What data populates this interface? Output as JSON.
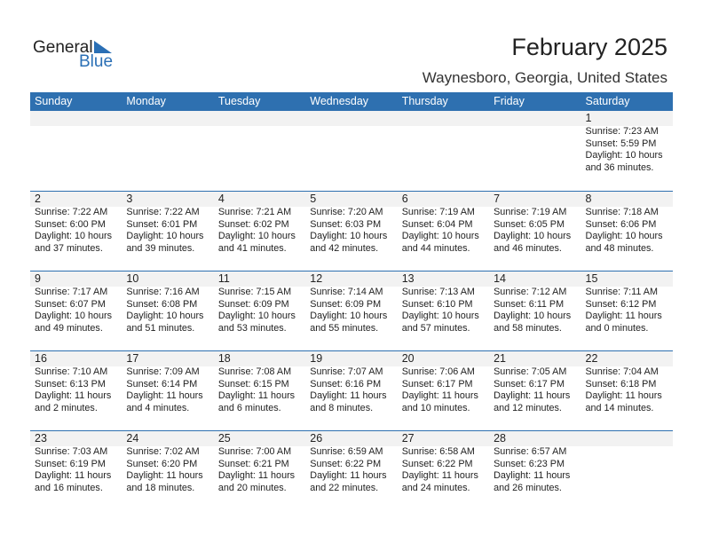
{
  "logo": {
    "text1": "General",
    "text2": "Blue"
  },
  "title": "February 2025",
  "location": "Waynesboro, Georgia, United States",
  "colors": {
    "header": "#2e70b0",
    "strip": "#f2f2f2"
  },
  "weekdays": [
    "Sunday",
    "Monday",
    "Tuesday",
    "Wednesday",
    "Thursday",
    "Friday",
    "Saturday"
  ],
  "weeks": [
    [
      null,
      null,
      null,
      null,
      null,
      null,
      {
        "day": "1",
        "sunrise": "Sunrise: 7:23 AM",
        "sunset": "Sunset: 5:59 PM",
        "daylight": "Daylight: 10 hours",
        "minutes": "and 36 minutes."
      }
    ],
    [
      {
        "day": "2",
        "sunrise": "Sunrise: 7:22 AM",
        "sunset": "Sunset: 6:00 PM",
        "daylight": "Daylight: 10 hours",
        "minutes": "and 37 minutes."
      },
      {
        "day": "3",
        "sunrise": "Sunrise: 7:22 AM",
        "sunset": "Sunset: 6:01 PM",
        "daylight": "Daylight: 10 hours",
        "minutes": "and 39 minutes."
      },
      {
        "day": "4",
        "sunrise": "Sunrise: 7:21 AM",
        "sunset": "Sunset: 6:02 PM",
        "daylight": "Daylight: 10 hours",
        "minutes": "and 41 minutes."
      },
      {
        "day": "5",
        "sunrise": "Sunrise: 7:20 AM",
        "sunset": "Sunset: 6:03 PM",
        "daylight": "Daylight: 10 hours",
        "minutes": "and 42 minutes."
      },
      {
        "day": "6",
        "sunrise": "Sunrise: 7:19 AM",
        "sunset": "Sunset: 6:04 PM",
        "daylight": "Daylight: 10 hours",
        "minutes": "and 44 minutes."
      },
      {
        "day": "7",
        "sunrise": "Sunrise: 7:19 AM",
        "sunset": "Sunset: 6:05 PM",
        "daylight": "Daylight: 10 hours",
        "minutes": "and 46 minutes."
      },
      {
        "day": "8",
        "sunrise": "Sunrise: 7:18 AM",
        "sunset": "Sunset: 6:06 PM",
        "daylight": "Daylight: 10 hours",
        "minutes": "and 48 minutes."
      }
    ],
    [
      {
        "day": "9",
        "sunrise": "Sunrise: 7:17 AM",
        "sunset": "Sunset: 6:07 PM",
        "daylight": "Daylight: 10 hours",
        "minutes": "and 49 minutes."
      },
      {
        "day": "10",
        "sunrise": "Sunrise: 7:16 AM",
        "sunset": "Sunset: 6:08 PM",
        "daylight": "Daylight: 10 hours",
        "minutes": "and 51 minutes."
      },
      {
        "day": "11",
        "sunrise": "Sunrise: 7:15 AM",
        "sunset": "Sunset: 6:09 PM",
        "daylight": "Daylight: 10 hours",
        "minutes": "and 53 minutes."
      },
      {
        "day": "12",
        "sunrise": "Sunrise: 7:14 AM",
        "sunset": "Sunset: 6:09 PM",
        "daylight": "Daylight: 10 hours",
        "minutes": "and 55 minutes."
      },
      {
        "day": "13",
        "sunrise": "Sunrise: 7:13 AM",
        "sunset": "Sunset: 6:10 PM",
        "daylight": "Daylight: 10 hours",
        "minutes": "and 57 minutes."
      },
      {
        "day": "14",
        "sunrise": "Sunrise: 7:12 AM",
        "sunset": "Sunset: 6:11 PM",
        "daylight": "Daylight: 10 hours",
        "minutes": "and 58 minutes."
      },
      {
        "day": "15",
        "sunrise": "Sunrise: 7:11 AM",
        "sunset": "Sunset: 6:12 PM",
        "daylight": "Daylight: 11 hours",
        "minutes": "and 0 minutes."
      }
    ],
    [
      {
        "day": "16",
        "sunrise": "Sunrise: 7:10 AM",
        "sunset": "Sunset: 6:13 PM",
        "daylight": "Daylight: 11 hours",
        "minutes": "and 2 minutes."
      },
      {
        "day": "17",
        "sunrise": "Sunrise: 7:09 AM",
        "sunset": "Sunset: 6:14 PM",
        "daylight": "Daylight: 11 hours",
        "minutes": "and 4 minutes."
      },
      {
        "day": "18",
        "sunrise": "Sunrise: 7:08 AM",
        "sunset": "Sunset: 6:15 PM",
        "daylight": "Daylight: 11 hours",
        "minutes": "and 6 minutes."
      },
      {
        "day": "19",
        "sunrise": "Sunrise: 7:07 AM",
        "sunset": "Sunset: 6:16 PM",
        "daylight": "Daylight: 11 hours",
        "minutes": "and 8 minutes."
      },
      {
        "day": "20",
        "sunrise": "Sunrise: 7:06 AM",
        "sunset": "Sunset: 6:17 PM",
        "daylight": "Daylight: 11 hours",
        "minutes": "and 10 minutes."
      },
      {
        "day": "21",
        "sunrise": "Sunrise: 7:05 AM",
        "sunset": "Sunset: 6:17 PM",
        "daylight": "Daylight: 11 hours",
        "minutes": "and 12 minutes."
      },
      {
        "day": "22",
        "sunrise": "Sunrise: 7:04 AM",
        "sunset": "Sunset: 6:18 PM",
        "daylight": "Daylight: 11 hours",
        "minutes": "and 14 minutes."
      }
    ],
    [
      {
        "day": "23",
        "sunrise": "Sunrise: 7:03 AM",
        "sunset": "Sunset: 6:19 PM",
        "daylight": "Daylight: 11 hours",
        "minutes": "and 16 minutes."
      },
      {
        "day": "24",
        "sunrise": "Sunrise: 7:02 AM",
        "sunset": "Sunset: 6:20 PM",
        "daylight": "Daylight: 11 hours",
        "minutes": "and 18 minutes."
      },
      {
        "day": "25",
        "sunrise": "Sunrise: 7:00 AM",
        "sunset": "Sunset: 6:21 PM",
        "daylight": "Daylight: 11 hours",
        "minutes": "and 20 minutes."
      },
      {
        "day": "26",
        "sunrise": "Sunrise: 6:59 AM",
        "sunset": "Sunset: 6:22 PM",
        "daylight": "Daylight: 11 hours",
        "minutes": "and 22 minutes."
      },
      {
        "day": "27",
        "sunrise": "Sunrise: 6:58 AM",
        "sunset": "Sunset: 6:22 PM",
        "daylight": "Daylight: 11 hours",
        "minutes": "and 24 minutes."
      },
      {
        "day": "28",
        "sunrise": "Sunrise: 6:57 AM",
        "sunset": "Sunset: 6:23 PM",
        "daylight": "Daylight: 11 hours",
        "minutes": "and 26 minutes."
      },
      null
    ]
  ]
}
